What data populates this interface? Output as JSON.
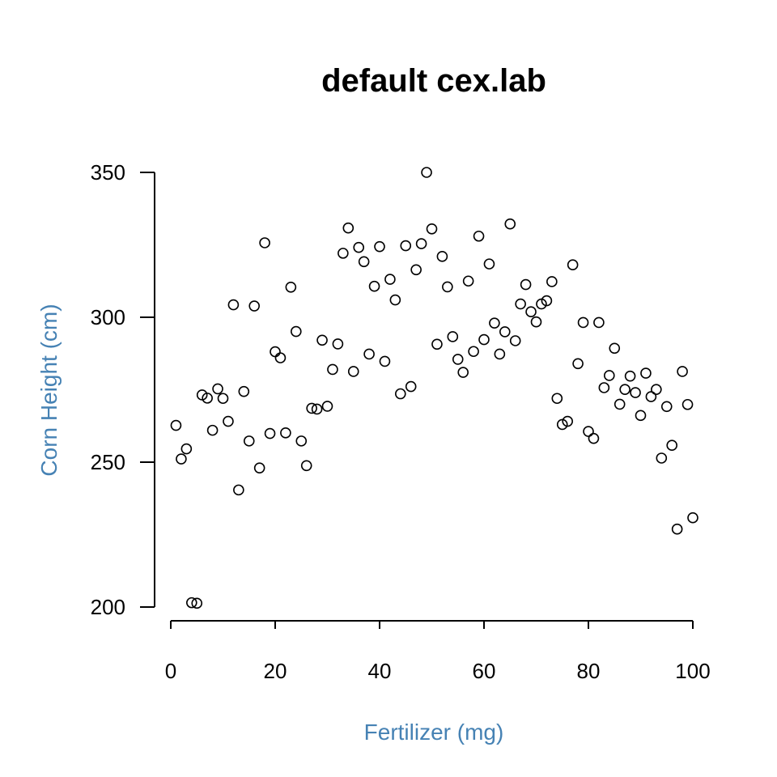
{
  "chart_data": {
    "type": "scatter",
    "title": "default cex.lab",
    "xlabel": "Fertilizer (mg)",
    "ylabel": "Corn Height (cm)",
    "label_color": "#4682b4",
    "xlim": [
      0,
      100
    ],
    "ylim": [
      200,
      350
    ],
    "xticks": [
      "0",
      "20",
      "40",
      "60",
      "80",
      "100"
    ],
    "yticks": [
      "200",
      "250",
      "300",
      "350"
    ],
    "grid": false,
    "legend": "none",
    "x": [
      1,
      2,
      3,
      4,
      5,
      6,
      7,
      8,
      9,
      10,
      11,
      12,
      13,
      14,
      15,
      16,
      17,
      18,
      19,
      20,
      21,
      22,
      23,
      24,
      25,
      26,
      27,
      28,
      29,
      30,
      31,
      32,
      33,
      34,
      35,
      36,
      37,
      38,
      39,
      40,
      41,
      42,
      43,
      44,
      45,
      46,
      47,
      48,
      49,
      50,
      51,
      52,
      53,
      54,
      55,
      56,
      57,
      58,
      59,
      60,
      61,
      62,
      63,
      64,
      65,
      66,
      67,
      68,
      69,
      70,
      71,
      72,
      73,
      74,
      75,
      76,
      77,
      78,
      79,
      80,
      81,
      82,
      83,
      84,
      85,
      86,
      87,
      88,
      89,
      90,
      91,
      92,
      93,
      94,
      95,
      96,
      97,
      98,
      99,
      100
    ],
    "y": [
      262.7,
      251.1,
      254.6,
      201.5,
      201.3,
      273.2,
      272.1,
      261.0,
      275.3,
      272.0,
      264.1,
      304.3,
      240.4,
      274.4,
      257.3,
      303.9,
      248.0,
      325.7,
      259.9,
      288.1,
      286.0,
      260.1,
      310.4,
      295.1,
      257.3,
      248.8,
      268.6,
      268.3,
      292.1,
      269.3,
      282.0,
      290.8,
      322.1,
      330.8,
      281.3,
      324.1,
      319.2,
      287.3,
      310.7,
      324.4,
      284.8,
      313.1,
      306.0,
      273.6,
      324.7,
      276.1,
      316.4,
      325.4,
      350.0,
      330.5,
      290.7,
      321.0,
      310.5,
      293.3,
      285.5,
      281.0,
      312.5,
      288.2,
      328.0,
      292.3,
      318.4,
      298.0,
      287.3,
      295.0,
      332.2,
      291.9,
      304.6,
      311.3,
      301.9,
      298.4,
      304.6,
      305.7,
      312.3,
      272.0,
      263.0,
      264.1,
      318.1,
      284.0,
      298.2,
      260.6,
      258.2,
      298.2,
      275.7,
      279.9,
      289.3,
      270.0,
      275.1,
      279.7,
      274.0,
      266.1,
      280.7,
      272.6,
      275.1,
      251.4,
      269.2,
      255.8,
      226.9,
      281.3,
      269.9,
      230.8
    ]
  }
}
